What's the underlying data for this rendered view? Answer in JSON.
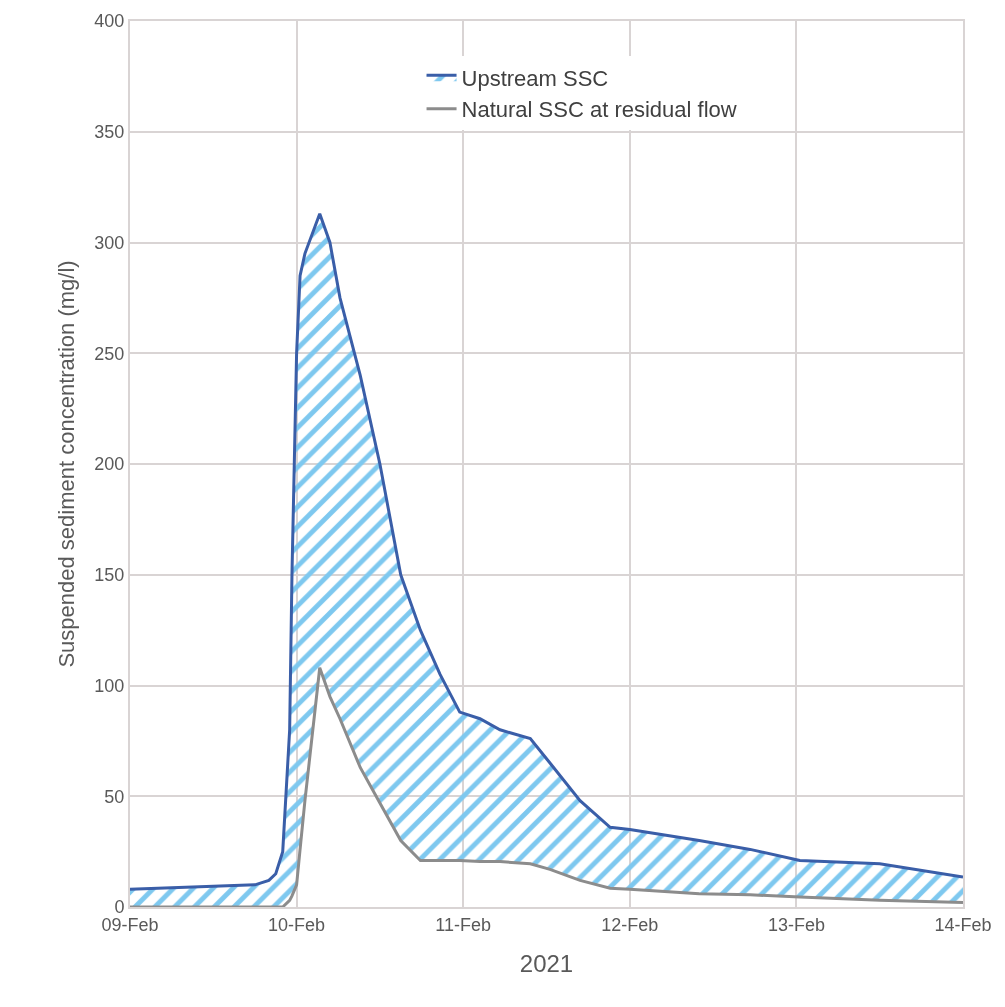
{
  "chart_data": {
    "type": "line",
    "xlabel": "2021",
    "ylabel": "Suspended sediment concentration (mg/l)",
    "xlim": [
      "2021-02-09",
      "2021-02-14"
    ],
    "xticks": [
      {
        "value": "2021-02-09",
        "label": "09-Feb"
      },
      {
        "value": "2021-02-10",
        "label": "10-Feb"
      },
      {
        "value": "2021-02-11",
        "label": "11-Feb"
      },
      {
        "value": "2021-02-12",
        "label": "12-Feb"
      },
      {
        "value": "2021-02-13",
        "label": "13-Feb"
      },
      {
        "value": "2021-02-14",
        "label": "14-Feb"
      }
    ],
    "ylim": [
      0,
      400
    ],
    "yticks": [
      0,
      50,
      100,
      150,
      200,
      250,
      300,
      350,
      400
    ],
    "grid": true,
    "legend": "top right",
    "x": [
      "2021-02-09T00:00",
      "2021-02-09T18:00",
      "2021-02-09T20:00",
      "2021-02-09T21:00",
      "2021-02-09T22:00",
      "2021-02-09T23:00",
      "2021-02-09T23:20",
      "2021-02-10T00:00",
      "2021-02-10T00:30",
      "2021-02-10T01:12",
      "2021-02-10T03:20",
      "2021-02-10T04:48",
      "2021-02-10T06:15",
      "2021-02-10T09:10",
      "2021-02-10T12:00",
      "2021-02-10T15:00",
      "2021-02-10T17:50",
      "2021-02-10T20:40",
      "2021-02-10T23:30",
      "2021-02-11T02:25",
      "2021-02-11T05:18",
      "2021-02-11T09:40",
      "2021-02-11T12:30",
      "2021-02-11T16:50",
      "2021-02-11T21:10",
      "2021-02-12T00:00",
      "2021-02-12T10:00",
      "2021-02-12T17:20",
      "2021-02-13T00:30",
      "2021-02-13T12:00",
      "2021-02-14T00:00"
    ],
    "series": [
      {
        "name": "Natural SSC at residual flow",
        "color": "#8c8c8c",
        "values": [
          0,
          0,
          0,
          0,
          0,
          3,
          5,
          10,
          26,
          48,
          108,
          95,
          85,
          63,
          47,
          30,
          21,
          21,
          21,
          20.5,
          20.5,
          19.5,
          17,
          12,
          8.5,
          8,
          6,
          5.5,
          4.5,
          3,
          2
        ]
      },
      {
        "name": "Upstream SSC",
        "color": "#3a5ea8",
        "type": "area",
        "values": [
          8,
          10,
          12,
          15,
          25,
          80,
          150,
          250,
          285,
          295,
          313,
          300,
          275,
          240,
          200,
          150,
          125,
          105,
          88,
          85,
          80,
          76,
          65,
          48,
          36,
          35,
          30,
          26,
          21,
          19.5,
          13.5
        ]
      }
    ]
  }
}
